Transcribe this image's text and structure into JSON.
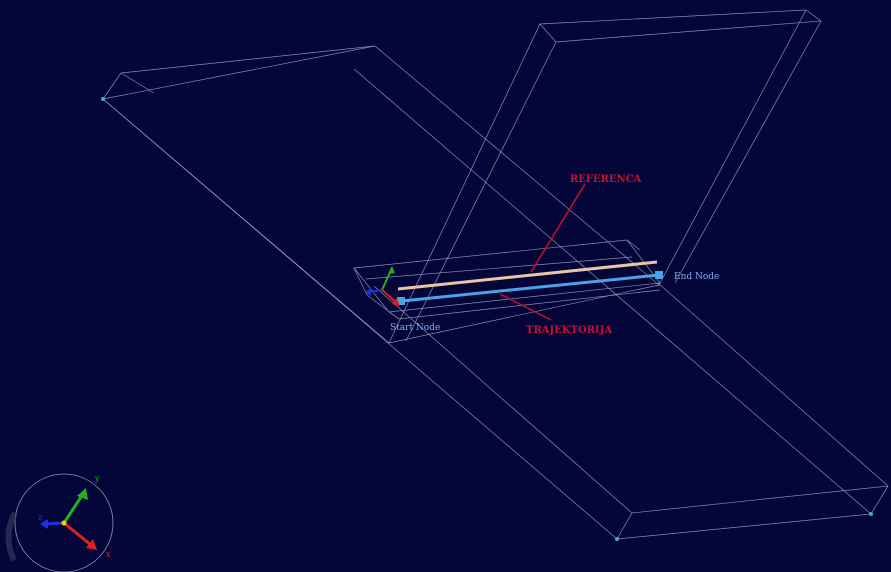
{
  "viewport": {
    "background": "#04063a"
  },
  "labels": {
    "referenca": "REFERENCA",
    "trajektorija": "TRAJEKTORIJA",
    "start_node": "Start Node",
    "end_node": "End Node"
  },
  "colors": {
    "wireframe": "#9ea6c4",
    "reference_path": "#e9c7a4",
    "trajectory_path": "#4aa3e6",
    "annotation_red": "#c8102e",
    "node_label": "#7fb2ee",
    "node_dot": "#4aa3e6",
    "axis_x": "#e02020",
    "axis_y": "#22b022",
    "axis_z": "#2030e0"
  },
  "triad": {
    "x_label": "x",
    "y_label": "y",
    "z_label": "z"
  },
  "icons": [
    "axis-triad-icon",
    "start-node-icon",
    "end-node-icon"
  ]
}
